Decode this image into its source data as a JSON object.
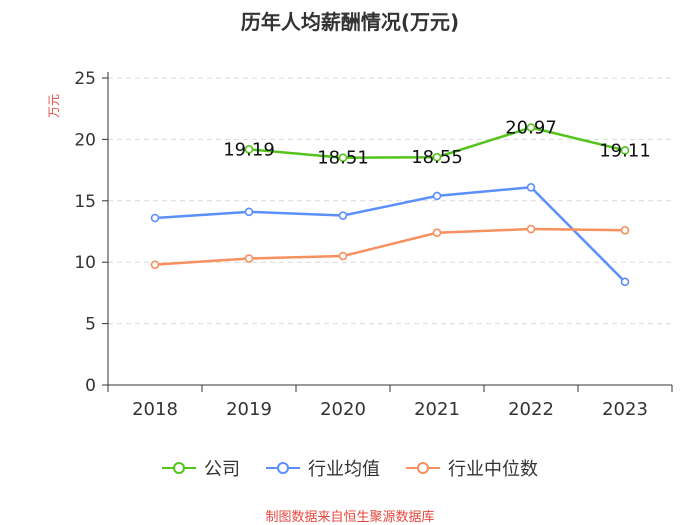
{
  "chart_data": {
    "type": "line",
    "title": "历年人均薪酬情况(万元)",
    "ylabel": "万元",
    "xlabel": "",
    "categories": [
      "2018",
      "2019",
      "2020",
      "2021",
      "2022",
      "2023"
    ],
    "ylim": [
      0,
      25
    ],
    "yticks": [
      0,
      5,
      10,
      15,
      20,
      25
    ],
    "grid": true,
    "legend_position": "bottom",
    "series": [
      {
        "name": "公司",
        "color": "#52c41a",
        "values": [
          null,
          19.19,
          18.51,
          18.55,
          20.97,
          19.11
        ],
        "labels": true
      },
      {
        "name": "行业均值",
        "color": "#5b8ff9",
        "values": [
          13.6,
          14.1,
          13.8,
          15.4,
          16.1,
          8.4
        ],
        "labels": false
      },
      {
        "name": "行业中位数",
        "color": "#f6905f",
        "values": [
          9.8,
          10.3,
          10.5,
          12.4,
          12.7,
          12.6
        ],
        "labels": false
      }
    ]
  },
  "source": "制图数据来自恒生聚源数据库"
}
